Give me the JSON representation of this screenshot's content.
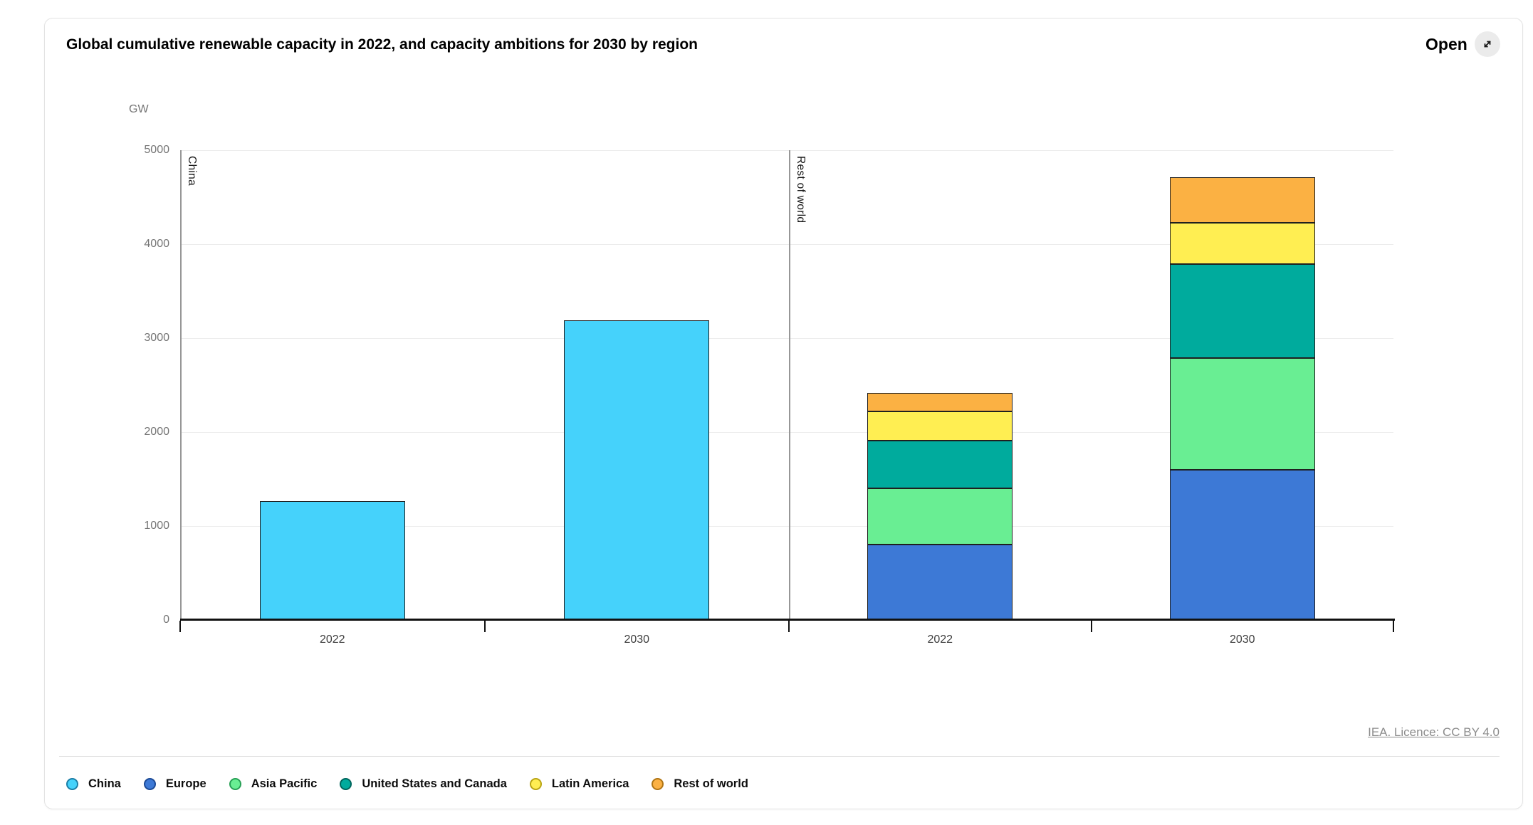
{
  "header": {
    "title": "Global cumulative renewable capacity in 2022, and capacity ambitions for 2030 by region",
    "open_label": "Open",
    "open_icon": "expand-diagonal-arrow-icon"
  },
  "footer": {
    "licence": "IEA. Licence: CC BY 4.0"
  },
  "chart_data": {
    "type": "bar",
    "stacked": true,
    "unit": "GW",
    "ylabel": "GW",
    "ylim": [
      0,
      5000
    ],
    "yticks": [
      "0",
      "1000",
      "2000",
      "3000",
      "4000",
      "5000"
    ],
    "grid": true,
    "legend_position": "bottom",
    "panels": [
      {
        "label": "China",
        "categories": [
          "2022",
          "2030"
        ],
        "series": [
          {
            "name": "China",
            "color": "#45d2fb",
            "values": [
              1265,
              3190
            ]
          }
        ]
      },
      {
        "label": "Rest of world",
        "categories": [
          "2022",
          "2030"
        ],
        "series": [
          {
            "name": "Europe",
            "color": "#3d79d6",
            "values": [
              805,
              1595
            ]
          },
          {
            "name": "Asia Pacific",
            "color": "#69ee93",
            "values": [
              600,
              1195
            ]
          },
          {
            "name": "United States and Canada",
            "color": "#00ab9d",
            "values": [
              505,
              1000
            ]
          },
          {
            "name": "Latin America",
            "color": "#ffee52",
            "values": [
              310,
              440
            ]
          },
          {
            "name": "Rest of world",
            "color": "#fbb143",
            "values": [
              195,
              485
            ]
          }
        ]
      }
    ],
    "legend": [
      {
        "label": "China",
        "color": "#45d2fb",
        "ring": "#1c7ea6"
      },
      {
        "label": "Europe",
        "color": "#3d79d6",
        "ring": "#1c4a96"
      },
      {
        "label": "Asia Pacific",
        "color": "#69ee93",
        "ring": "#27a055"
      },
      {
        "label": "United States and Canada",
        "color": "#00ab9d",
        "ring": "#00655c"
      },
      {
        "label": "Latin America",
        "color": "#ffee52",
        "ring": "#b9a414"
      },
      {
        "label": "Rest of world",
        "color": "#fbb143",
        "ring": "#b07514"
      }
    ]
  }
}
